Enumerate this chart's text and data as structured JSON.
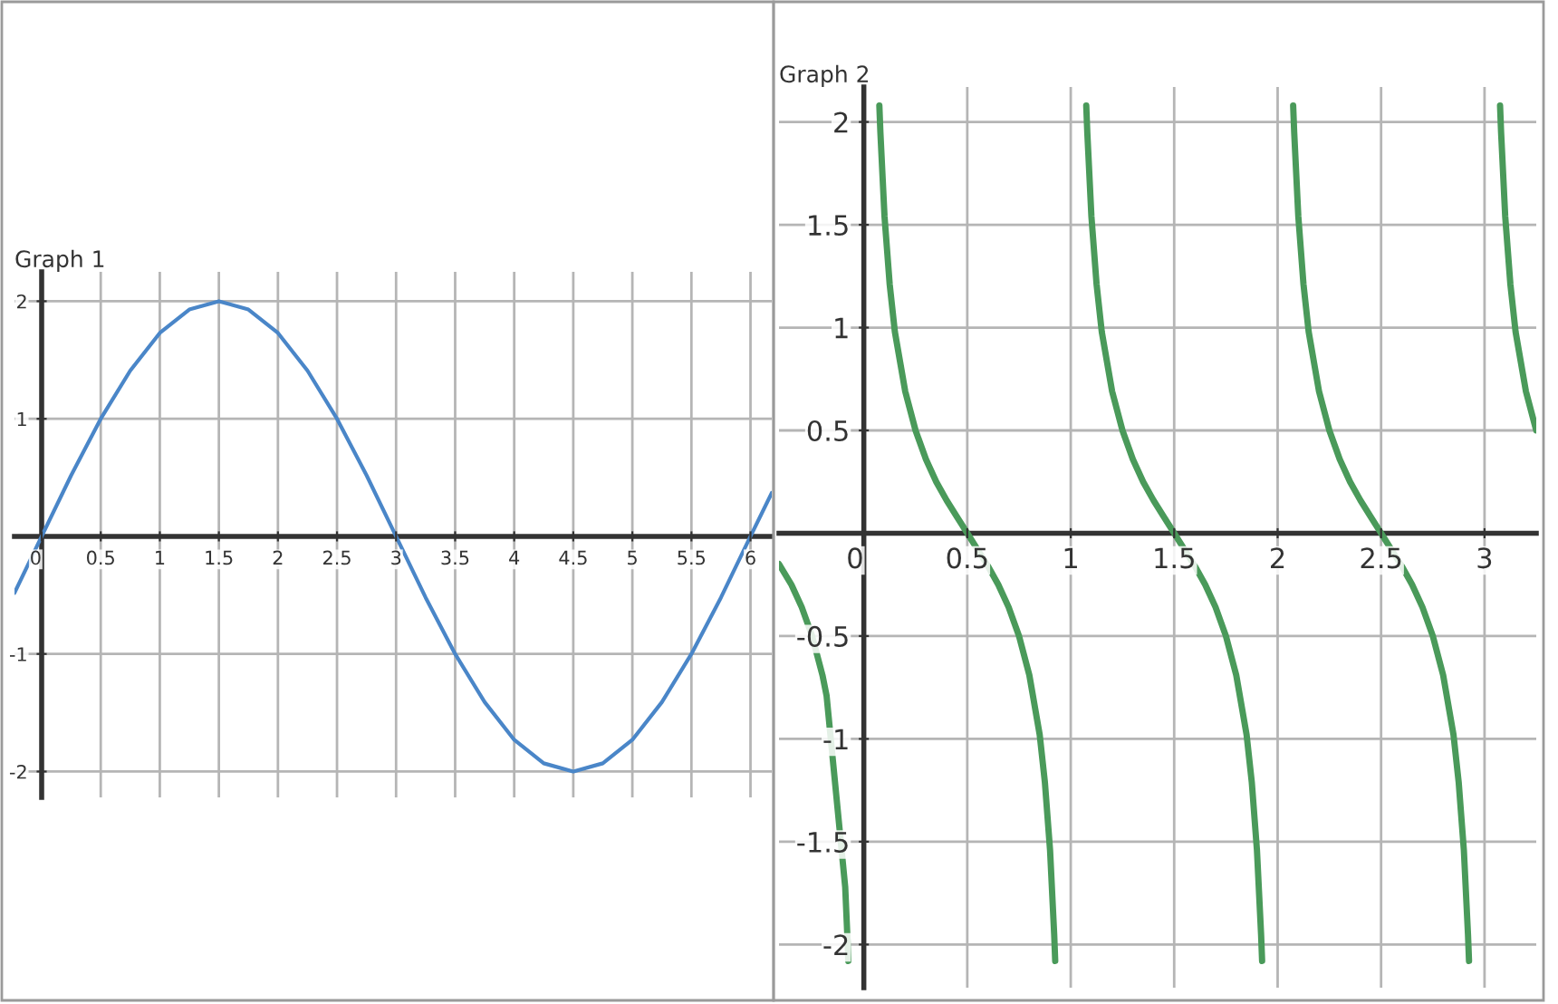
{
  "chart_data": [
    {
      "type": "line",
      "title": "Graph 1",
      "xlim": [
        -0.23,
        6.18
      ],
      "ylim": [
        -2.22,
        2.25
      ],
      "xticks": [
        0,
        0.5,
        1,
        1.5,
        2,
        2.5,
        3,
        3.5,
        4,
        4.5,
        5,
        5.5,
        6
      ],
      "yticks": [
        -2,
        -1,
        1,
        2
      ],
      "grid": true,
      "marker": "none",
      "line_style": "solid",
      "series": [
        {
          "color": "#4a86c8",
          "x": [
            -0.23,
            0,
            0.25,
            0.5,
            0.75,
            1,
            1.25,
            1.5,
            1.75,
            2,
            2.25,
            2.5,
            2.75,
            3,
            3.25,
            3.5,
            3.75,
            4,
            4.25,
            4.5,
            4.75,
            5,
            5.25,
            5.5,
            5.75,
            6,
            6.18
          ],
          "values": [
            -0.48,
            0,
            0.52,
            1,
            1.41,
            1.73,
            1.93,
            2,
            1.93,
            1.73,
            1.41,
            1,
            0.52,
            0,
            -0.52,
            -1,
            -1.41,
            -1.73,
            -1.93,
            -2,
            -1.93,
            -1.73,
            -1.41,
            -1,
            -0.52,
            0,
            0.37
          ]
        }
      ]
    },
    {
      "type": "line",
      "title": "Graph 2",
      "xlim": [
        -0.41,
        3.25
      ],
      "ylim": [
        -2.21,
        2.17
      ],
      "xticks": [
        0,
        0.5,
        1,
        1.5,
        2,
        2.5,
        3
      ],
      "yticks": [
        -2,
        -1.5,
        -1,
        -0.5,
        0.5,
        1,
        1.5,
        2
      ],
      "grid": true,
      "marker": "none",
      "line_style": "solid",
      "series": [
        {
          "color": "#4a9a5a",
          "x": [
            -0.41,
            -0.35,
            -0.3,
            -0.25,
            -0.2,
            -0.18,
            -0.09,
            -0.08,
            -0.075
          ],
          "values": [
            -0.15,
            -0.25,
            -0.36,
            -0.5,
            -0.69,
            -0.79,
            -1.72,
            -1.95,
            -2.08
          ]
        },
        {
          "color": "#4a9a5a",
          "x": [
            0.075,
            0.08,
            0.1,
            0.125,
            0.15,
            0.2,
            0.25,
            0.3,
            0.35,
            0.4,
            0.45,
            0.5,
            0.55,
            0.6,
            0.65,
            0.7,
            0.75,
            0.8,
            0.85,
            0.875,
            0.9,
            0.92,
            0.925
          ],
          "values": [
            2.08,
            1.95,
            1.54,
            1.21,
            0.98,
            0.69,
            0.5,
            0.36,
            0.25,
            0.16,
            0.08,
            0,
            -0.08,
            -0.16,
            -0.25,
            -0.36,
            -0.5,
            -0.69,
            -0.98,
            -1.21,
            -1.54,
            -1.95,
            -2.08
          ]
        },
        {
          "color": "#4a9a5a",
          "x": [
            1.075,
            1.08,
            1.1,
            1.125,
            1.15,
            1.2,
            1.25,
            1.3,
            1.35,
            1.4,
            1.45,
            1.5,
            1.55,
            1.6,
            1.65,
            1.7,
            1.75,
            1.8,
            1.85,
            1.875,
            1.9,
            1.92,
            1.925
          ],
          "values": [
            2.08,
            1.95,
            1.54,
            1.21,
            0.98,
            0.69,
            0.5,
            0.36,
            0.25,
            0.16,
            0.08,
            0,
            -0.08,
            -0.16,
            -0.25,
            -0.36,
            -0.5,
            -0.69,
            -0.98,
            -1.21,
            -1.54,
            -1.95,
            -2.08
          ]
        },
        {
          "color": "#4a9a5a",
          "x": [
            2.075,
            2.08,
            2.1,
            2.125,
            2.15,
            2.2,
            2.25,
            2.3,
            2.35,
            2.4,
            2.45,
            2.5,
            2.55,
            2.6,
            2.65,
            2.7,
            2.75,
            2.8,
            2.85,
            2.875,
            2.9,
            2.92,
            2.925
          ],
          "values": [
            2.08,
            1.95,
            1.54,
            1.21,
            0.98,
            0.69,
            0.5,
            0.36,
            0.25,
            0.16,
            0.08,
            0,
            -0.08,
            -0.16,
            -0.25,
            -0.36,
            -0.5,
            -0.69,
            -0.98,
            -1.21,
            -1.54,
            -1.95,
            -2.08
          ]
        },
        {
          "color": "#4a9a5a",
          "x": [
            3.075,
            3.08,
            3.1,
            3.125,
            3.15,
            3.2,
            3.25
          ],
          "values": [
            2.08,
            1.95,
            1.54,
            1.21,
            0.98,
            0.69,
            0.5
          ]
        }
      ]
    }
  ]
}
